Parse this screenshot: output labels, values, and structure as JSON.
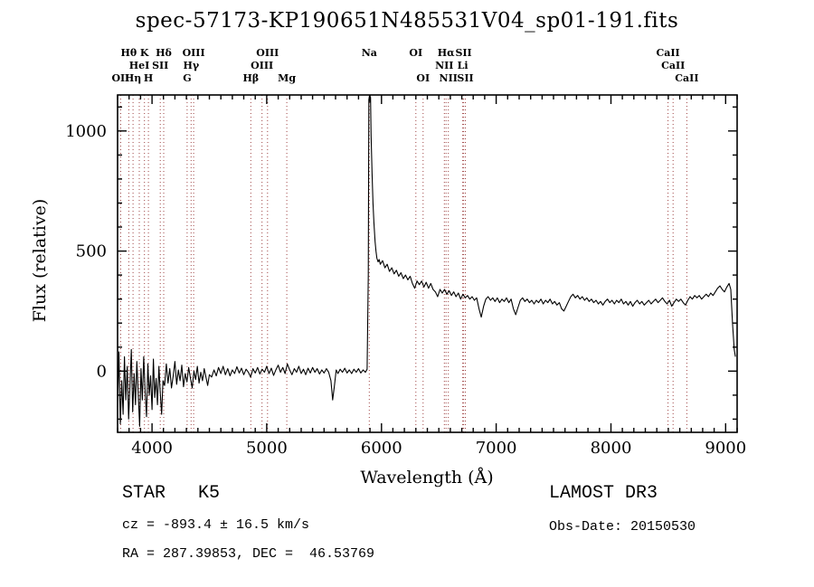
{
  "chart_data": {
    "type": "line",
    "title": "spec-57173-KP190651N485531V04_sp01-191.fits",
    "xlabel": "Wavelength (Å)",
    "ylabel": "Flux (relative)",
    "xlim": [
      3700,
      9100
    ],
    "ylim": [
      -255,
      1150
    ],
    "x_ticks": [
      4000,
      5000,
      6000,
      7000,
      8000,
      9000
    ],
    "y_ticks": [
      0,
      500,
      1000
    ],
    "minor_step_x": 100,
    "minor_step_y": 100,
    "line_color": "#000000",
    "spectral_line_color": "#9e4343",
    "grid": false,
    "legend": "none",
    "spectral_lines": [
      {
        "label": "Hθ",
        "wavelength": 3798,
        "row": 1
      },
      {
        "label": "K",
        "wavelength": 3934,
        "row": 1
      },
      {
        "label": "Hδ",
        "wavelength": 4102,
        "row": 1
      },
      {
        "label": "OIII",
        "wavelength": 4363,
        "row": 1
      },
      {
        "label": "OIII",
        "wavelength": 5007,
        "row": 1
      },
      {
        "label": "Na",
        "wavelength": 5894,
        "row": 1
      },
      {
        "label": "OI",
        "wavelength": 6300,
        "row": 1
      },
      {
        "label": "Hα",
        "wavelength": 6563,
        "row": 1
      },
      {
        "label": "SII",
        "wavelength": 6716,
        "row": 1
      },
      {
        "label": "CaII",
        "wavelength": 8498,
        "row": 1
      },
      {
        "label": "HeI",
        "wavelength": 3889,
        "row": 2
      },
      {
        "label": "SII",
        "wavelength": 4072,
        "row": 2
      },
      {
        "label": "Hγ",
        "wavelength": 4341,
        "row": 2
      },
      {
        "label": "OIII",
        "wavelength": 4959,
        "row": 2
      },
      {
        "label": "NII",
        "wavelength": 6548,
        "row": 2
      },
      {
        "label": "Li",
        "wavelength": 6708,
        "row": 2
      },
      {
        "label": "CaII",
        "wavelength": 8542,
        "row": 2
      },
      {
        "label": "OII",
        "wavelength": 3727,
        "row": 3
      },
      {
        "label": "Hη",
        "wavelength": 3835,
        "row": 3
      },
      {
        "label": "H",
        "wavelength": 3969,
        "row": 3
      },
      {
        "label": "G",
        "wavelength": 4306,
        "row": 3
      },
      {
        "label": "Hβ",
        "wavelength": 4861,
        "row": 3
      },
      {
        "label": "Mg",
        "wavelength": 5175,
        "row": 3
      },
      {
        "label": "OI",
        "wavelength": 6363,
        "row": 3
      },
      {
        "label": "NII",
        "wavelength": 6583,
        "row": 3
      },
      {
        "label": "SII",
        "wavelength": 6731,
        "row": 3
      },
      {
        "label": "CaII",
        "wavelength": 8662,
        "row": 3
      }
    ],
    "points": [
      [
        3700,
        -150
      ],
      [
        3712,
        80
      ],
      [
        3724,
        -220
      ],
      [
        3736,
        -40
      ],
      [
        3748,
        -180
      ],
      [
        3760,
        60
      ],
      [
        3772,
        -120
      ],
      [
        3784,
        20
      ],
      [
        3796,
        -200
      ],
      [
        3808,
        -60
      ],
      [
        3820,
        90
      ],
      [
        3832,
        -170
      ],
      [
        3844,
        -10
      ],
      [
        3856,
        -140
      ],
      [
        3868,
        40
      ],
      [
        3880,
        -90
      ],
      [
        3892,
        -230
      ],
      [
        3904,
        10
      ],
      [
        3916,
        -120
      ],
      [
        3928,
        60
      ],
      [
        3940,
        -80
      ],
      [
        3952,
        -190
      ],
      [
        3964,
        30
      ],
      [
        3976,
        -100
      ],
      [
        3988,
        -20
      ],
      [
        4000,
        -160
      ],
      [
        4012,
        50
      ],
      [
        4024,
        -110
      ],
      [
        4036,
        -30
      ],
      [
        4048,
        -140
      ],
      [
        4060,
        20
      ],
      [
        4072,
        -90
      ],
      [
        4084,
        -180
      ],
      [
        4096,
        -40
      ],
      [
        4110,
        -60
      ],
      [
        4125,
        30
      ],
      [
        4140,
        -50
      ],
      [
        4155,
        10
      ],
      [
        4170,
        -70
      ],
      [
        4185,
        -20
      ],
      [
        4200,
        40
      ],
      [
        4215,
        -55
      ],
      [
        4230,
        5
      ],
      [
        4245,
        -40
      ],
      [
        4260,
        25
      ],
      [
        4275,
        -65
      ],
      [
        4290,
        -10
      ],
      [
        4305,
        -45
      ],
      [
        4320,
        15
      ],
      [
        4335,
        -30
      ],
      [
        4350,
        -70
      ],
      [
        4365,
        0
      ],
      [
        4380,
        -35
      ],
      [
        4395,
        20
      ],
      [
        4410,
        -50
      ],
      [
        4425,
        -5
      ],
      [
        4440,
        -40
      ],
      [
        4455,
        10
      ],
      [
        4470,
        -25
      ],
      [
        4485,
        -60
      ],
      [
        4500,
        -15
      ],
      [
        4520,
        -25
      ],
      [
        4540,
        5
      ],
      [
        4560,
        -20
      ],
      [
        4580,
        15
      ],
      [
        4600,
        -10
      ],
      [
        4620,
        20
      ],
      [
        4640,
        -15
      ],
      [
        4660,
        10
      ],
      [
        4680,
        -20
      ],
      [
        4700,
        5
      ],
      [
        4720,
        -10
      ],
      [
        4740,
        18
      ],
      [
        4760,
        -8
      ],
      [
        4780,
        12
      ],
      [
        4800,
        -15
      ],
      [
        4820,
        8
      ],
      [
        4840,
        -5
      ],
      [
        4860,
        -25
      ],
      [
        4880,
        10
      ],
      [
        4900,
        -8
      ],
      [
        4920,
        15
      ],
      [
        4940,
        -12
      ],
      [
        4960,
        8
      ],
      [
        4980,
        -5
      ],
      [
        5000,
        20
      ],
      [
        5020,
        -10
      ],
      [
        5040,
        12
      ],
      [
        5060,
        -18
      ],
      [
        5080,
        6
      ],
      [
        5100,
        25
      ],
      [
        5120,
        -5
      ],
      [
        5140,
        15
      ],
      [
        5160,
        -10
      ],
      [
        5180,
        30
      ],
      [
        5200,
        5
      ],
      [
        5220,
        -15
      ],
      [
        5240,
        10
      ],
      [
        5260,
        -5
      ],
      [
        5280,
        20
      ],
      [
        5300,
        -10
      ],
      [
        5320,
        8
      ],
      [
        5340,
        -15
      ],
      [
        5360,
        12
      ],
      [
        5380,
        -8
      ],
      [
        5400,
        15
      ],
      [
        5420,
        -5
      ],
      [
        5440,
        10
      ],
      [
        5460,
        -12
      ],
      [
        5480,
        5
      ],
      [
        5500,
        -8
      ],
      [
        5520,
        10
      ],
      [
        5540,
        -5
      ],
      [
        5560,
        -40
      ],
      [
        5575,
        -120
      ],
      [
        5590,
        -60
      ],
      [
        5605,
        5
      ],
      [
        5620,
        -10
      ],
      [
        5640,
        8
      ],
      [
        5660,
        -5
      ],
      [
        5680,
        12
      ],
      [
        5700,
        -8
      ],
      [
        5720,
        5
      ],
      [
        5740,
        -10
      ],
      [
        5760,
        8
      ],
      [
        5780,
        -5
      ],
      [
        5800,
        10
      ],
      [
        5820,
        -8
      ],
      [
        5840,
        5
      ],
      [
        5860,
        -5
      ],
      [
        5875,
        8
      ],
      [
        5885,
        400
      ],
      [
        5890,
        1130
      ],
      [
        5895,
        1145
      ],
      [
        5900,
        1120
      ],
      [
        5905,
        1140
      ],
      [
        5910,
        980
      ],
      [
        5918,
        820
      ],
      [
        5926,
        700
      ],
      [
        5934,
        620
      ],
      [
        5944,
        540
      ],
      [
        5952,
        500
      ],
      [
        5960,
        470
      ],
      [
        5970,
        455
      ],
      [
        5980,
        465
      ],
      [
        5990,
        445
      ],
      [
        6010,
        460
      ],
      [
        6030,
        430
      ],
      [
        6050,
        445
      ],
      [
        6070,
        415
      ],
      [
        6090,
        430
      ],
      [
        6110,
        405
      ],
      [
        6130,
        420
      ],
      [
        6150,
        395
      ],
      [
        6170,
        410
      ],
      [
        6190,
        385
      ],
      [
        6210,
        400
      ],
      [
        6230,
        380
      ],
      [
        6250,
        395
      ],
      [
        6270,
        365
      ],
      [
        6290,
        345
      ],
      [
        6310,
        375
      ],
      [
        6330,
        360
      ],
      [
        6350,
        375
      ],
      [
        6370,
        350
      ],
      [
        6390,
        370
      ],
      [
        6410,
        345
      ],
      [
        6430,
        365
      ],
      [
        6450,
        340
      ],
      [
        6470,
        330
      ],
      [
        6490,
        310
      ],
      [
        6510,
        340
      ],
      [
        6530,
        325
      ],
      [
        6550,
        340
      ],
      [
        6570,
        320
      ],
      [
        6590,
        335
      ],
      [
        6610,
        315
      ],
      [
        6630,
        330
      ],
      [
        6650,
        310
      ],
      [
        6670,
        325
      ],
      [
        6690,
        300
      ],
      [
        6710,
        320
      ],
      [
        6730,
        305
      ],
      [
        6750,
        315
      ],
      [
        6770,
        300
      ],
      [
        6790,
        310
      ],
      [
        6810,
        295
      ],
      [
        6830,
        305
      ],
      [
        6850,
        260
      ],
      [
        6870,
        225
      ],
      [
        6890,
        270
      ],
      [
        6910,
        300
      ],
      [
        6930,
        310
      ],
      [
        6950,
        295
      ],
      [
        6970,
        305
      ],
      [
        6990,
        290
      ],
      [
        7010,
        305
      ],
      [
        7030,
        285
      ],
      [
        7050,
        300
      ],
      [
        7070,
        290
      ],
      [
        7090,
        305
      ],
      [
        7110,
        285
      ],
      [
        7130,
        300
      ],
      [
        7150,
        260
      ],
      [
        7170,
        235
      ],
      [
        7190,
        265
      ],
      [
        7210,
        295
      ],
      [
        7230,
        305
      ],
      [
        7250,
        290
      ],
      [
        7270,
        300
      ],
      [
        7290,
        285
      ],
      [
        7310,
        295
      ],
      [
        7330,
        280
      ],
      [
        7350,
        295
      ],
      [
        7370,
        285
      ],
      [
        7390,
        300
      ],
      [
        7410,
        280
      ],
      [
        7430,
        295
      ],
      [
        7450,
        285
      ],
      [
        7470,
        300
      ],
      [
        7490,
        280
      ],
      [
        7510,
        290
      ],
      [
        7530,
        275
      ],
      [
        7550,
        285
      ],
      [
        7570,
        260
      ],
      [
        7590,
        250
      ],
      [
        7610,
        270
      ],
      [
        7630,
        290
      ],
      [
        7650,
        310
      ],
      [
        7670,
        320
      ],
      [
        7690,
        305
      ],
      [
        7710,
        315
      ],
      [
        7730,
        300
      ],
      [
        7750,
        310
      ],
      [
        7770,
        295
      ],
      [
        7790,
        305
      ],
      [
        7810,
        290
      ],
      [
        7830,
        300
      ],
      [
        7850,
        285
      ],
      [
        7870,
        295
      ],
      [
        7890,
        280
      ],
      [
        7910,
        290
      ],
      [
        7930,
        275
      ],
      [
        7950,
        290
      ],
      [
        7970,
        300
      ],
      [
        7990,
        285
      ],
      [
        8010,
        295
      ],
      [
        8030,
        280
      ],
      [
        8050,
        295
      ],
      [
        8070,
        285
      ],
      [
        8090,
        300
      ],
      [
        8110,
        280
      ],
      [
        8130,
        290
      ],
      [
        8150,
        275
      ],
      [
        8170,
        290
      ],
      [
        8190,
        270
      ],
      [
        8210,
        285
      ],
      [
        8230,
        295
      ],
      [
        8250,
        280
      ],
      [
        8270,
        290
      ],
      [
        8290,
        275
      ],
      [
        8310,
        285
      ],
      [
        8330,
        295
      ],
      [
        8350,
        280
      ],
      [
        8370,
        290
      ],
      [
        8390,
        300
      ],
      [
        8410,
        285
      ],
      [
        8430,
        295
      ],
      [
        8450,
        305
      ],
      [
        8470,
        290
      ],
      [
        8490,
        280
      ],
      [
        8510,
        295
      ],
      [
        8530,
        270
      ],
      [
        8550,
        285
      ],
      [
        8570,
        300
      ],
      [
        8590,
        290
      ],
      [
        8610,
        300
      ],
      [
        8630,
        285
      ],
      [
        8650,
        275
      ],
      [
        8670,
        295
      ],
      [
        8690,
        310
      ],
      [
        8710,
        300
      ],
      [
        8730,
        315
      ],
      [
        8750,
        305
      ],
      [
        8770,
        315
      ],
      [
        8790,
        300
      ],
      [
        8810,
        310
      ],
      [
        8830,
        320
      ],
      [
        8850,
        310
      ],
      [
        8870,
        325
      ],
      [
        8890,
        315
      ],
      [
        8910,
        330
      ],
      [
        8930,
        345
      ],
      [
        8950,
        355
      ],
      [
        8970,
        340
      ],
      [
        8990,
        330
      ],
      [
        9010,
        350
      ],
      [
        9030,
        365
      ],
      [
        9045,
        340
      ],
      [
        9060,
        200
      ],
      [
        9075,
        90
      ],
      [
        9085,
        60
      ]
    ]
  },
  "footer": {
    "class_label": "STAR   K5",
    "survey": "LAMOST DR3",
    "cz": "cz = -893.4 ± 16.5 km/s",
    "obs_date": "Obs-Date: 20150530",
    "radec": "RA = 287.39853, DEC =  46.53769"
  }
}
